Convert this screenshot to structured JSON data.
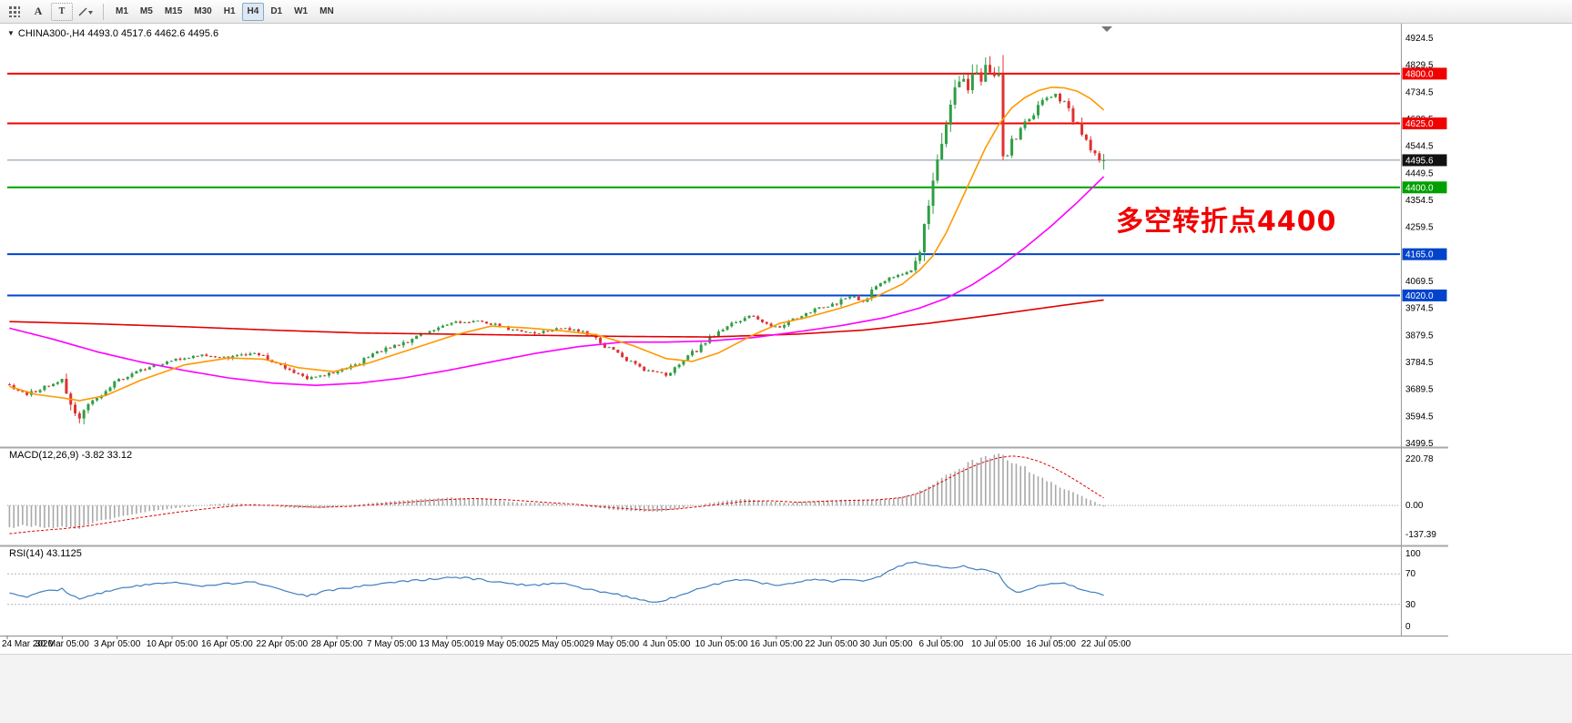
{
  "toolbar": {
    "cursor_tool_label": "A",
    "text_tool_label": "T",
    "timeframes": [
      "M1",
      "M5",
      "M15",
      "M30",
      "H1",
      "H4",
      "D1",
      "W1",
      "MN"
    ],
    "active_timeframe": "H4"
  },
  "icons": {
    "symbol_dropdown": "▼"
  },
  "chart": {
    "title_text": "CHINA300-,H4 4493.0 4517.6 4462.6 4495.6",
    "symbol": "CHINA300-",
    "period": "H4",
    "open": "4493.0",
    "high": "4517.6",
    "low": "4462.6",
    "close": "4495.6",
    "current_price": 4495.6,
    "current_price_label": "4495.6",
    "annotation": "多空转折点4400",
    "annotation_color": "#f20000"
  },
  "indicators": {
    "macd": {
      "label": "MACD(12,26,9) -3.82 33.12",
      "scale_labels": [
        "220.78",
        "0.00",
        "-137.39"
      ],
      "max": 220.78,
      "min": -137.39
    },
    "rsi": {
      "label": "RSI(14) 43.1125",
      "scale_labels": [
        "100",
        "70",
        "30",
        "0"
      ],
      "levels": [
        70,
        30
      ]
    }
  },
  "chart_data": {
    "type": "candlestick",
    "bars": 251,
    "price_axis": {
      "min": 3499.5,
      "max": 4924.5,
      "tick_step": 95,
      "tick_labels": [
        "4924.5",
        "4829.5",
        "4734.5",
        "4639.5",
        "4544.5",
        "4449.5",
        "4354.5",
        "4259.5",
        "4164.5",
        "4069.5",
        "3974.5",
        "3879.5",
        "3784.5",
        "3689.5",
        "3594.5",
        "3499.5"
      ]
    },
    "time_labels": [
      "24 Mar 2020",
      "30 Mar 05:00",
      "3 Apr 05:00",
      "10 Apr 05:00",
      "16 Apr 05:00",
      "22 Apr 05:00",
      "28 Apr 05:00",
      "7 May 05:00",
      "13 May 05:00",
      "19 May 05:00",
      "25 May 05:00",
      "29 May 05:00",
      "4 Jun 05:00",
      "10 Jun 05:00",
      "16 Jun 05:00",
      "22 Jun 05:00",
      "30 Jun 05:00",
      "6 Jul 05:00",
      "10 Jul 05:00",
      "16 Jul 05:00",
      "22 Jul 05:00"
    ],
    "levels": [
      {
        "price": 4800.0,
        "label": "4800.0",
        "color": "#f20000"
      },
      {
        "price": 4625.0,
        "label": "4625.0",
        "color": "#f20000"
      },
      {
        "price": 4400.0,
        "label": "4400.0",
        "color": "#00a000"
      },
      {
        "price": 4165.0,
        "label": "4165.0",
        "color": "#0044cc"
      },
      {
        "price": 4020.0,
        "label": "4020.0",
        "color": "#0044cc"
      }
    ],
    "close_path": [
      [
        0,
        3705
      ],
      [
        4,
        3670
      ],
      [
        8,
        3700
      ],
      [
        12,
        3720
      ],
      [
        14,
        3645
      ],
      [
        16,
        3585
      ],
      [
        18,
        3630
      ],
      [
        22,
        3690
      ],
      [
        26,
        3730
      ],
      [
        32,
        3770
      ],
      [
        38,
        3795
      ],
      [
        44,
        3810
      ],
      [
        50,
        3800
      ],
      [
        56,
        3818
      ],
      [
        60,
        3790
      ],
      [
        64,
        3758
      ],
      [
        68,
        3725
      ],
      [
        72,
        3742
      ],
      [
        78,
        3768
      ],
      [
        84,
        3822
      ],
      [
        90,
        3852
      ],
      [
        96,
        3898
      ],
      [
        102,
        3925
      ],
      [
        108,
        3930
      ],
      [
        114,
        3902
      ],
      [
        120,
        3885
      ],
      [
        126,
        3906
      ],
      [
        130,
        3896
      ],
      [
        134,
        3866
      ],
      [
        138,
        3822
      ],
      [
        142,
        3786
      ],
      [
        146,
        3752
      ],
      [
        150,
        3742
      ],
      [
        154,
        3792
      ],
      [
        158,
        3842
      ],
      [
        162,
        3896
      ],
      [
        166,
        3926
      ],
      [
        170,
        3950
      ],
      [
        173,
        3922
      ],
      [
        176,
        3906
      ],
      [
        180,
        3944
      ],
      [
        184,
        3970
      ],
      [
        188,
        3986
      ],
      [
        192,
        4016
      ],
      [
        195,
        4002
      ],
      [
        198,
        4050
      ],
      [
        201,
        4080
      ],
      [
        204,
        4098
      ],
      [
        206,
        4110
      ],
      [
        208,
        4170
      ],
      [
        209,
        4260
      ],
      [
        210,
        4340
      ],
      [
        211,
        4420
      ],
      [
        212,
        4500
      ],
      [
        213,
        4560
      ],
      [
        214,
        4620
      ],
      [
        215,
        4700
      ],
      [
        216,
        4740
      ],
      [
        217,
        4762
      ],
      [
        218,
        4780
      ],
      [
        219,
        4742
      ],
      [
        220,
        4790
      ],
      [
        221,
        4812
      ],
      [
        222,
        4772
      ],
      [
        223,
        4822
      ],
      [
        224,
        4800
      ],
      [
        225,
        4790
      ],
      [
        226,
        4796
      ],
      [
        227,
        4500
      ],
      [
        228,
        4522
      ],
      [
        229,
        4560
      ],
      [
        231,
        4600
      ],
      [
        233,
        4642
      ],
      [
        235,
        4682
      ],
      [
        237,
        4712
      ],
      [
        239,
        4730
      ],
      [
        241,
        4692
      ],
      [
        243,
        4642
      ],
      [
        245,
        4592
      ],
      [
        247,
        4542
      ],
      [
        248,
        4512
      ],
      [
        249,
        4490
      ],
      [
        250,
        4495.6
      ]
    ],
    "ma_orange": [
      [
        0,
        3700
      ],
      [
        6,
        3672
      ],
      [
        12,
        3660
      ],
      [
        16,
        3650
      ],
      [
        22,
        3668
      ],
      [
        30,
        3722
      ],
      [
        40,
        3776
      ],
      [
        50,
        3800
      ],
      [
        58,
        3796
      ],
      [
        66,
        3766
      ],
      [
        74,
        3752
      ],
      [
        82,
        3782
      ],
      [
        92,
        3832
      ],
      [
        102,
        3882
      ],
      [
        110,
        3912
      ],
      [
        118,
        3906
      ],
      [
        126,
        3896
      ],
      [
        134,
        3882
      ],
      [
        142,
        3846
      ],
      [
        150,
        3798
      ],
      [
        156,
        3788
      ],
      [
        162,
        3818
      ],
      [
        170,
        3882
      ],
      [
        176,
        3922
      ],
      [
        182,
        3942
      ],
      [
        190,
        3976
      ],
      [
        198,
        4016
      ],
      [
        204,
        4060
      ],
      [
        208,
        4110
      ],
      [
        211,
        4160
      ],
      [
        214,
        4240
      ],
      [
        217,
        4340
      ],
      [
        220,
        4440
      ],
      [
        223,
        4540
      ],
      [
        226,
        4620
      ],
      [
        229,
        4680
      ],
      [
        232,
        4716
      ],
      [
        235,
        4740
      ],
      [
        238,
        4752
      ],
      [
        241,
        4750
      ],
      [
        244,
        4738
      ],
      [
        247,
        4712
      ],
      [
        250,
        4672
      ]
    ],
    "ma_magenta": [
      [
        0,
        3905
      ],
      [
        10,
        3866
      ],
      [
        20,
        3822
      ],
      [
        30,
        3786
      ],
      [
        40,
        3756
      ],
      [
        50,
        3730
      ],
      [
        60,
        3712
      ],
      [
        70,
        3704
      ],
      [
        80,
        3712
      ],
      [
        90,
        3730
      ],
      [
        100,
        3756
      ],
      [
        110,
        3786
      ],
      [
        120,
        3816
      ],
      [
        130,
        3840
      ],
      [
        140,
        3856
      ],
      [
        150,
        3856
      ],
      [
        160,
        3860
      ],
      [
        170,
        3872
      ],
      [
        180,
        3892
      ],
      [
        190,
        3914
      ],
      [
        200,
        3942
      ],
      [
        208,
        3976
      ],
      [
        214,
        4010
      ],
      [
        220,
        4058
      ],
      [
        226,
        4118
      ],
      [
        232,
        4188
      ],
      [
        238,
        4264
      ],
      [
        244,
        4348
      ],
      [
        250,
        4438
      ]
    ],
    "ma_red": [
      [
        0,
        3928
      ],
      [
        20,
        3920
      ],
      [
        40,
        3910
      ],
      [
        60,
        3898
      ],
      [
        80,
        3888
      ],
      [
        100,
        3884
      ],
      [
        120,
        3880
      ],
      [
        140,
        3876
      ],
      [
        160,
        3874
      ],
      [
        180,
        3884
      ],
      [
        195,
        3898
      ],
      [
        210,
        3922
      ],
      [
        225,
        3952
      ],
      [
        240,
        3984
      ],
      [
        250,
        4004
      ]
    ],
    "macd_hist": [
      [
        0,
        -95
      ],
      [
        4,
        -85
      ],
      [
        8,
        -100
      ],
      [
        12,
        -92
      ],
      [
        16,
        -98
      ],
      [
        20,
        -70
      ],
      [
        26,
        -45
      ],
      [
        32,
        -25
      ],
      [
        40,
        -8
      ],
      [
        48,
        8
      ],
      [
        56,
        6
      ],
      [
        64,
        -10
      ],
      [
        72,
        -12
      ],
      [
        80,
        6
      ],
      [
        90,
        22
      ],
      [
        100,
        34
      ],
      [
        108,
        30
      ],
      [
        116,
        12
      ],
      [
        124,
        10
      ],
      [
        132,
        -6
      ],
      [
        140,
        -22
      ],
      [
        148,
        -28
      ],
      [
        154,
        -10
      ],
      [
        162,
        18
      ],
      [
        168,
        28
      ],
      [
        173,
        18
      ],
      [
        178,
        10
      ],
      [
        184,
        20
      ],
      [
        190,
        24
      ],
      [
        196,
        22
      ],
      [
        202,
        30
      ],
      [
        206,
        45
      ],
      [
        209,
        70
      ],
      [
        212,
        105
      ],
      [
        215,
        140
      ],
      [
        218,
        170
      ],
      [
        221,
        195
      ],
      [
        223,
        208
      ],
      [
        225,
        220
      ],
      [
        227,
        206
      ],
      [
        229,
        188
      ],
      [
        232,
        160
      ],
      [
        235,
        128
      ],
      [
        238,
        98
      ],
      [
        241,
        72
      ],
      [
        244,
        48
      ],
      [
        246,
        30
      ],
      [
        248,
        14
      ],
      [
        249,
        6
      ],
      [
        250,
        -3.82
      ]
    ],
    "macd_signal": [
      [
        0,
        -122
      ],
      [
        6,
        -110
      ],
      [
        12,
        -101
      ],
      [
        18,
        -88
      ],
      [
        24,
        -70
      ],
      [
        30,
        -52
      ],
      [
        38,
        -30
      ],
      [
        46,
        -12
      ],
      [
        54,
        2
      ],
      [
        62,
        0
      ],
      [
        70,
        -8
      ],
      [
        78,
        -4
      ],
      [
        88,
        10
      ],
      [
        98,
        24
      ],
      [
        106,
        30
      ],
      [
        114,
        24
      ],
      [
        122,
        14
      ],
      [
        130,
        4
      ],
      [
        138,
        -10
      ],
      [
        146,
        -20
      ],
      [
        152,
        -16
      ],
      [
        160,
        0
      ],
      [
        168,
        18
      ],
      [
        174,
        20
      ],
      [
        180,
        14
      ],
      [
        186,
        18
      ],
      [
        192,
        22
      ],
      [
        198,
        24
      ],
      [
        204,
        34
      ],
      [
        208,
        55
      ],
      [
        211,
        82
      ],
      [
        214,
        112
      ],
      [
        217,
        142
      ],
      [
        220,
        168
      ],
      [
        223,
        190
      ],
      [
        226,
        206
      ],
      [
        229,
        214
      ],
      [
        232,
        208
      ],
      [
        235,
        192
      ],
      [
        238,
        168
      ],
      [
        241,
        138
      ],
      [
        244,
        104
      ],
      [
        246,
        80
      ],
      [
        248,
        56
      ],
      [
        249,
        44
      ],
      [
        250,
        33.12
      ]
    ],
    "rsi_path": [
      [
        0,
        46
      ],
      [
        4,
        40
      ],
      [
        8,
        47
      ],
      [
        12,
        50
      ],
      [
        16,
        36
      ],
      [
        20,
        44
      ],
      [
        26,
        52
      ],
      [
        32,
        56
      ],
      [
        38,
        58
      ],
      [
        44,
        54
      ],
      [
        50,
        57
      ],
      [
        56,
        60
      ],
      [
        60,
        52
      ],
      [
        64,
        45
      ],
      [
        68,
        41
      ],
      [
        72,
        47
      ],
      [
        78,
        52
      ],
      [
        84,
        57
      ],
      [
        90,
        60
      ],
      [
        96,
        63
      ],
      [
        102,
        66
      ],
      [
        108,
        62
      ],
      [
        114,
        57
      ],
      [
        120,
        55
      ],
      [
        126,
        58
      ],
      [
        132,
        50
      ],
      [
        138,
        44
      ],
      [
        144,
        36
      ],
      [
        148,
        33
      ],
      [
        152,
        40
      ],
      [
        158,
        52
      ],
      [
        164,
        60
      ],
      [
        168,
        63
      ],
      [
        172,
        58
      ],
      [
        176,
        54
      ],
      [
        180,
        60
      ],
      [
        184,
        62
      ],
      [
        188,
        60
      ],
      [
        192,
        63
      ],
      [
        196,
        61
      ],
      [
        200,
        70
      ],
      [
        203,
        80
      ],
      [
        206,
        85
      ],
      [
        209,
        83
      ],
      [
        212,
        80
      ],
      [
        215,
        78
      ],
      [
        218,
        80
      ],
      [
        221,
        76
      ],
      [
        224,
        74
      ],
      [
        226,
        70
      ],
      [
        228,
        52
      ],
      [
        230,
        45
      ],
      [
        232,
        48
      ],
      [
        234,
        52
      ],
      [
        236,
        55
      ],
      [
        238,
        57
      ],
      [
        240,
        58
      ],
      [
        242,
        56
      ],
      [
        244,
        52
      ],
      [
        246,
        48
      ],
      [
        248,
        45
      ],
      [
        250,
        43.11
      ]
    ],
    "colors": {
      "up": "#2f9e44",
      "down": "#e03131",
      "ma_fast": "#ff9800",
      "ma_mid": "#ff00ff",
      "ma_slow": "#e00000",
      "macd_hist": "#a8a8a8",
      "macd_signal": "#e00000",
      "rsi": "#3f7fbf",
      "price_line": "#7f93a9"
    }
  }
}
